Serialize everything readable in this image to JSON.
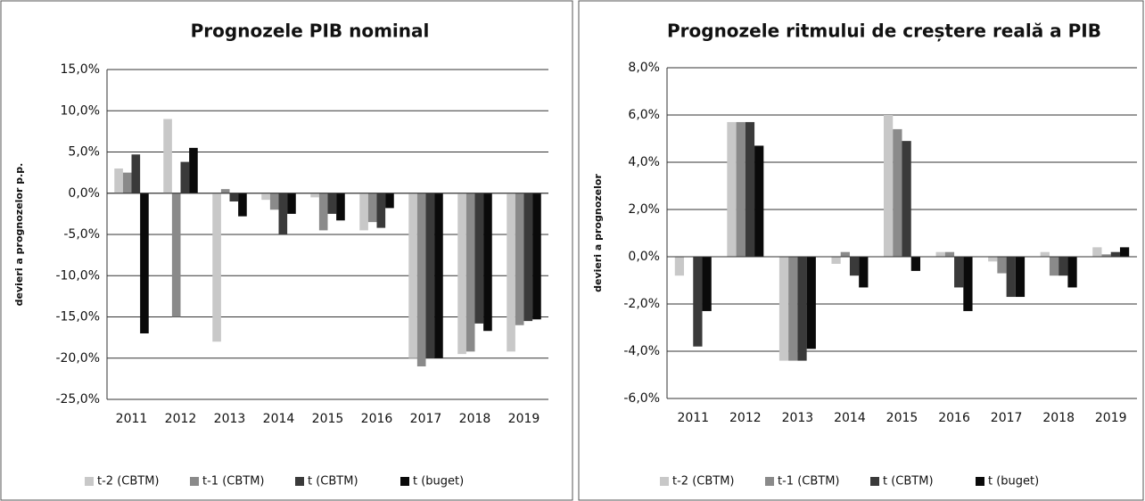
{
  "chart_data": [
    {
      "type": "bar",
      "title": "Prognozele PIB nominal",
      "y_label": "devieri a prognozelor p.p.",
      "categories": [
        "2011",
        "2012",
        "2013",
        "2014",
        "2015",
        "2016",
        "2017",
        "2018",
        "2019"
      ],
      "series": [
        {
          "name": "t-2 (CBTM)",
          "color": "#c8c8c8",
          "values": [
            3.0,
            9.0,
            -18.0,
            -0.8,
            -0.5,
            -4.5,
            -20.0,
            -19.5,
            -19.2
          ]
        },
        {
          "name": "t-1 (CBTM)",
          "color": "#8a8a8a",
          "values": [
            2.5,
            -15.0,
            0.5,
            -2.0,
            -4.5,
            -3.5,
            -21.0,
            -19.2,
            -16.0
          ]
        },
        {
          "name": "t (CBTM)",
          "color": "#3a3a3a",
          "values": [
            4.7,
            3.8,
            -1.0,
            -5.0,
            -2.5,
            -4.2,
            -20.0,
            -15.8,
            -15.5
          ]
        },
        {
          "name": "t (buget)",
          "color": "#0a0a0a",
          "values": [
            -17.0,
            5.5,
            -2.8,
            -2.5,
            -3.3,
            -1.8,
            -20.0,
            -16.7,
            -15.3
          ]
        }
      ],
      "ylim": [
        -25,
        15
      ],
      "yticks": [
        {
          "value": -25,
          "label": "-25,0%"
        },
        {
          "value": -20,
          "label": "-20,0%"
        },
        {
          "value": -15,
          "label": "-15,0%"
        },
        {
          "value": -10,
          "label": "-10,0%"
        },
        {
          "value": -5,
          "label": "-5,0%"
        },
        {
          "value": 0,
          "label": "0,0%"
        },
        {
          "value": 5,
          "label": "5,0%"
        },
        {
          "value": 10,
          "label": "10,0%"
        },
        {
          "value": 15,
          "label": "15,0%"
        }
      ],
      "grid": true,
      "legend": "bottom"
    },
    {
      "type": "bar",
      "title": "Prognozele ritmului de creștere reală a PIB",
      "y_label": "devieri a prognozelor",
      "categories": [
        "2011",
        "2012",
        "2013",
        "2014",
        "2015",
        "2016",
        "2017",
        "2018",
        "2019"
      ],
      "series": [
        {
          "name": "t-2 (CBTM)",
          "color": "#c8c8c8",
          "values": [
            -0.8,
            5.7,
            -4.4,
            -0.3,
            6.0,
            0.2,
            -0.2,
            0.2,
            0.4
          ]
        },
        {
          "name": "t-1 (CBTM)",
          "color": "#8a8a8a",
          "values": [
            0.0,
            5.7,
            -4.4,
            0.2,
            5.4,
            0.2,
            -0.7,
            -0.8,
            0.1
          ]
        },
        {
          "name": "t (CBTM)",
          "color": "#3a3a3a",
          "values": [
            -3.8,
            5.7,
            -4.4,
            -0.8,
            4.9,
            -1.3,
            -1.7,
            -0.8,
            0.2
          ]
        },
        {
          "name": "t (buget)",
          "color": "#0a0a0a",
          "values": [
            -2.3,
            4.7,
            -3.9,
            -1.3,
            -0.6,
            -2.3,
            -1.7,
            -1.3,
            0.4
          ]
        }
      ],
      "ylim": [
        -6,
        8
      ],
      "yticks": [
        {
          "value": -6,
          "label": "-6,0%"
        },
        {
          "value": -4,
          "label": "-4,0%"
        },
        {
          "value": -2,
          "label": "-2,0%"
        },
        {
          "value": 0,
          "label": "0,0%"
        },
        {
          "value": 2,
          "label": "2,0%"
        },
        {
          "value": 4,
          "label": "4,0%"
        },
        {
          "value": 6,
          "label": "6,0%"
        },
        {
          "value": 8,
          "label": "8,0%"
        }
      ],
      "grid": true,
      "legend": "bottom"
    }
  ]
}
